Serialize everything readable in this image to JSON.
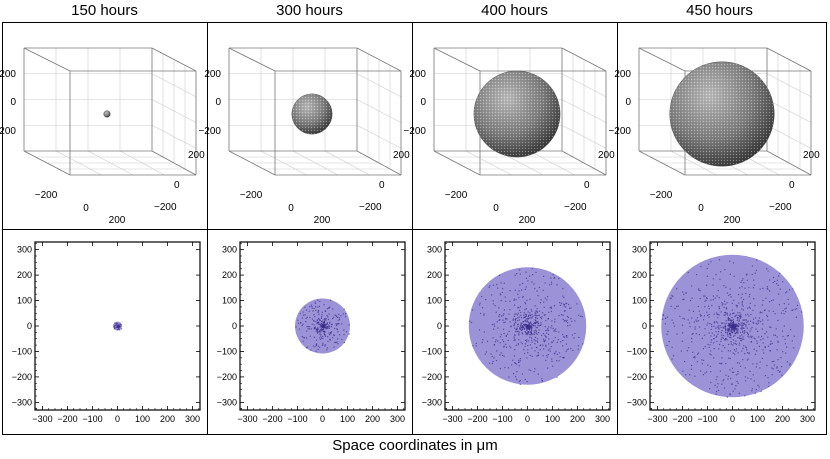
{
  "panels": [
    {
      "title": "150 hours",
      "radius": 18
    },
    {
      "title": "300 hours",
      "radius": 110
    },
    {
      "title": "400 hours",
      "radius": 235
    },
    {
      "title": "450 hours",
      "radius": 285
    }
  ],
  "caption": "Space coordinates in μm",
  "colors": {
    "sphere": "#7f7f7f",
    "sphere_dark": "#3c3c3c",
    "scatter_light": "#8b7fd0",
    "scatter_dark": "#3c2f8a",
    "frame": "#000000",
    "grid": "#cccccc"
  },
  "chart_data": [
    {
      "type": "scatter",
      "subtype": "3d-surface",
      "row": "top",
      "titles": [
        "150 hours",
        "300 hours",
        "400 hours",
        "450 hours"
      ],
      "axis_ticks_vertical": [
        "200",
        "0",
        "−200"
      ],
      "axis_ticks_front": [
        "−200",
        "0",
        "200"
      ],
      "axis_ticks_side": [
        "200",
        "0",
        "−200"
      ],
      "grid": true
    },
    {
      "type": "scatter",
      "subtype": "2d-projection",
      "row": "bottom",
      "titles": [
        "150 hours",
        "300 hours",
        "400 hours",
        "450 hours"
      ],
      "xlim": [
        -330,
        330
      ],
      "ylim": [
        -330,
        330
      ],
      "x_ticks": [
        "−300",
        "−200",
        "−100",
        "0",
        "100",
        "200",
        "300"
      ],
      "y_ticks": [
        "300",
        "200",
        "100",
        "0",
        "−100",
        "−200",
        "−300"
      ],
      "xlabel": "Space coordinates in μm",
      "grid": false
    }
  ]
}
